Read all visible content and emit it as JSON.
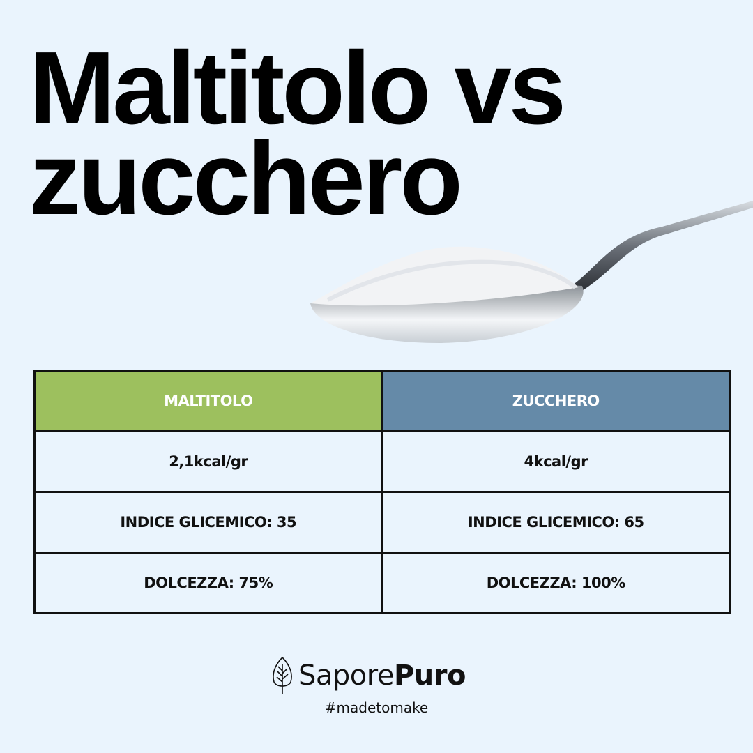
{
  "title": {
    "line1": "Maltitolo vs",
    "line2": "zucchero"
  },
  "table": {
    "headers": [
      "MALTITOLO",
      "ZUCCHERO"
    ],
    "header_colors": [
      "#9dc05e",
      "#658aa8"
    ],
    "rows": [
      [
        "2,1kcal/gr",
        "4kcal/gr"
      ],
      [
        "INDICE GLICEMICO: 35",
        "INDICE GLICEMICO: 65"
      ],
      [
        "DOLCEZZA: 75%",
        "DOLCEZZA: 100%"
      ]
    ]
  },
  "brand": {
    "name_light": "Sapore",
    "name_bold": "Puro",
    "tagline": "#madetomake",
    "icon": "leaf-icon"
  }
}
